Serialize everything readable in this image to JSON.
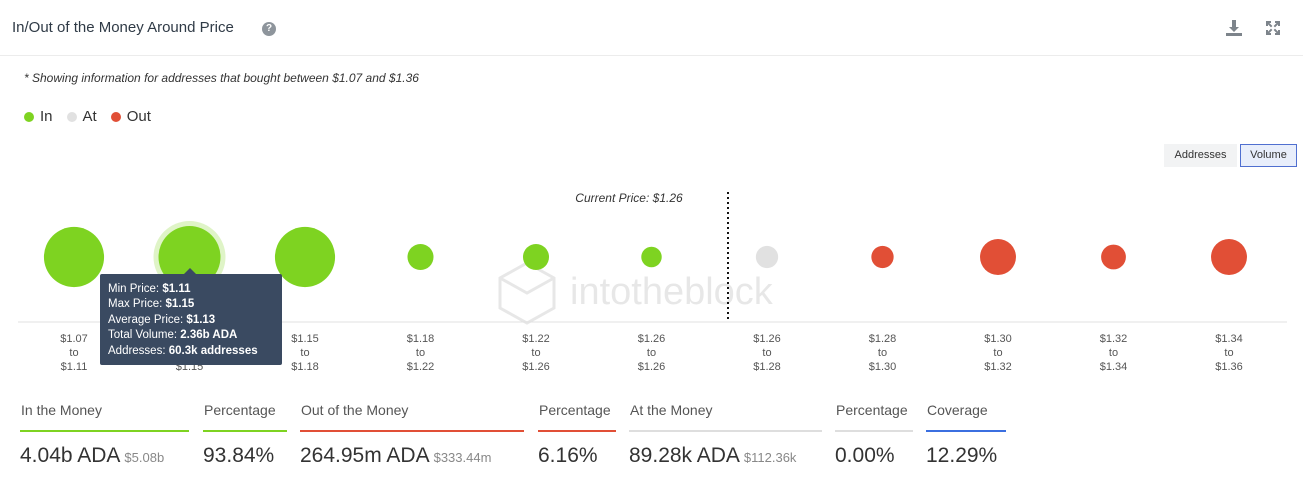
{
  "header": {
    "title": "In/Out of the Money Around Price",
    "help_glyph": "?"
  },
  "note": "* Showing information for addresses that bought between $1.07 and $1.36",
  "legend": [
    {
      "label": "In",
      "color": "#7ed321"
    },
    {
      "label": "At",
      "color": "#e1e1e1"
    },
    {
      "label": "Out",
      "color": "#e14f36"
    }
  ],
  "toggles": {
    "addresses": "Addresses",
    "volume": "Volume",
    "active": "Volume"
  },
  "watermark": "intotheblock",
  "tooltip": {
    "min_label": "Min Price:",
    "min_value": "$1.11",
    "max_label": "Max Price:",
    "max_value": "$1.15",
    "avg_label": "Average Price:",
    "avg_value": "$1.13",
    "vol_label": "Total Volume:",
    "vol_value": "2.36b ADA",
    "addr_label": "Addresses:",
    "addr_value": "60.3k addresses"
  },
  "chart_data": {
    "type": "scatter",
    "current_price_label": "Current Price: $1.26",
    "current_price_position": "between bucket 6 and 7",
    "categories": [
      {
        "from": "$1.07",
        "to": "$1.11",
        "status": "in"
      },
      {
        "from": "$1.11",
        "to": "$1.15",
        "status": "in",
        "highlighted": true
      },
      {
        "from": "$1.15",
        "to": "$1.18",
        "status": "in"
      },
      {
        "from": "$1.18",
        "to": "$1.22",
        "status": "in"
      },
      {
        "from": "$1.22",
        "to": "$1.26",
        "status": "in"
      },
      {
        "from": "$1.26",
        "to": "$1.26",
        "status": "in"
      },
      {
        "from": "$1.26",
        "to": "$1.28",
        "status": "at"
      },
      {
        "from": "$1.28",
        "to": "$1.30",
        "status": "out"
      },
      {
        "from": "$1.30",
        "to": "$1.32",
        "status": "out"
      },
      {
        "from": "$1.32",
        "to": "$1.34",
        "status": "out"
      },
      {
        "from": "$1.34",
        "to": "$1.36",
        "status": "out"
      }
    ],
    "tick_connector": "to",
    "relative_volume": [
      0.97,
      1.0,
      0.97,
      0.42,
      0.42,
      0.33,
      0.36,
      0.36,
      0.58,
      0.4,
      0.58
    ],
    "colors": {
      "in": "#7ed321",
      "at": "#e1e1e1",
      "out": "#e14f36"
    }
  },
  "stats": [
    {
      "label": "In the Money",
      "value": "4.04b ADA",
      "sub": "$5.08b",
      "color": "#7ed321"
    },
    {
      "label": "Percentage",
      "value": "93.84%",
      "sub": "",
      "color": "#7ed321"
    },
    {
      "label": "Out of the Money",
      "value": "264.95m ADA",
      "sub": "$333.44m",
      "color": "#e14f36"
    },
    {
      "label": "Percentage",
      "value": "6.16%",
      "sub": "",
      "color": "#e14f36"
    },
    {
      "label": "At the Money",
      "value": "89.28k ADA",
      "sub": "$112.36k",
      "color": "#dedede"
    },
    {
      "label": "Percentage",
      "value": "0.00%",
      "sub": "",
      "color": "#dedede"
    },
    {
      "label": "Coverage",
      "value": "12.29%",
      "sub": "",
      "color": "#3b6fe0"
    }
  ]
}
